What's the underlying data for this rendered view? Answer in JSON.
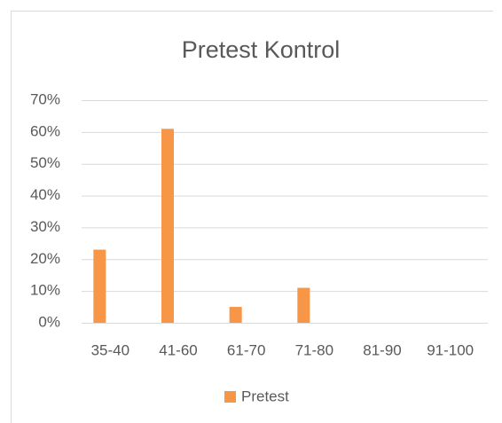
{
  "chart_data": {
    "type": "bar",
    "title": "Pretest Kontrol",
    "categories": [
      "35-40",
      "41-60",
      "61-70",
      "71-80",
      "81-90",
      "91-100"
    ],
    "series": [
      {
        "name": "Pretest",
        "color": "#f79646",
        "values": [
          23,
          61,
          5,
          11,
          0,
          0
        ]
      }
    ],
    "ylim": [
      0,
      70
    ],
    "yticks": [
      {
        "value": 0,
        "label": "0%"
      },
      {
        "value": 10,
        "label": "10%"
      },
      {
        "value": 20,
        "label": "20%"
      },
      {
        "value": 30,
        "label": "30%"
      },
      {
        "value": 40,
        "label": "40%"
      },
      {
        "value": 50,
        "label": "50%"
      },
      {
        "value": 60,
        "label": "60%"
      },
      {
        "value": 70,
        "label": "70%"
      }
    ],
    "grid": true,
    "legend": "bottom"
  }
}
